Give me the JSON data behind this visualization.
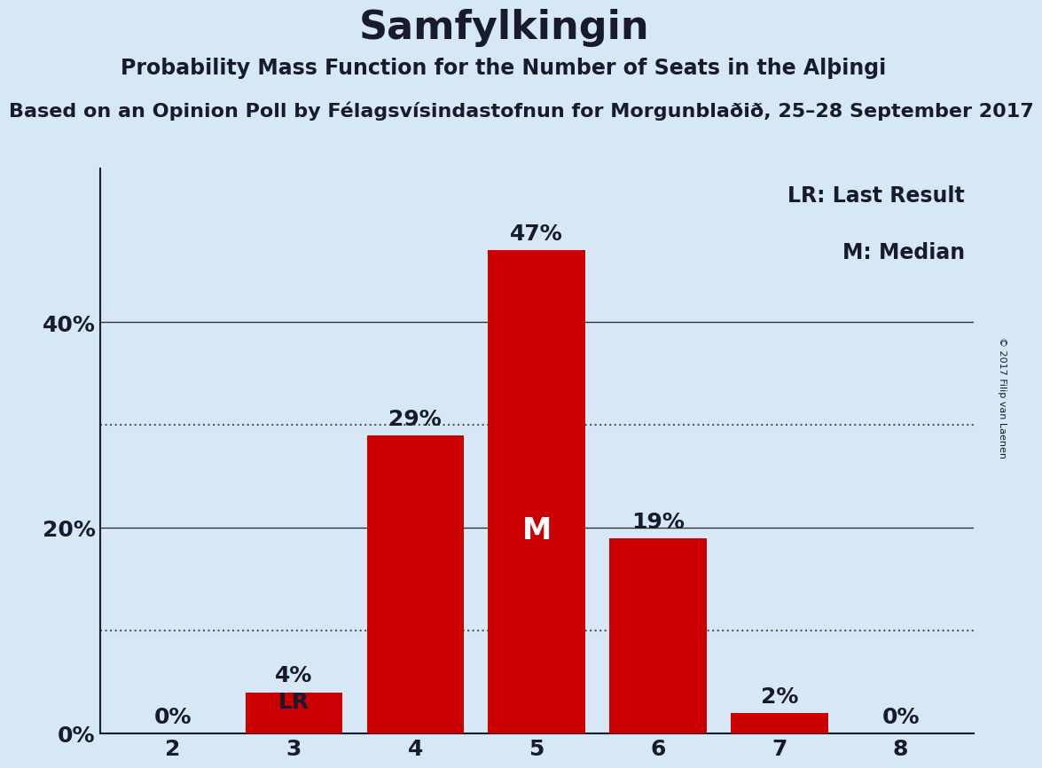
{
  "title": "Samfylkingin",
  "subtitle": "Probability Mass Function for the Number of Seats in the Alþingi",
  "source_line": "Based on an Opinion Poll by Félagsvísindastofnun for Morgunblaðið, 25–28 September 2017",
  "copyright": "© 2017 Filip van Laenen",
  "seats": [
    2,
    3,
    4,
    5,
    6,
    7,
    8
  ],
  "probabilities": [
    0,
    4,
    29,
    47,
    19,
    2,
    0
  ],
  "bar_color": "#cc0000",
  "background_color": "#d6e8f5",
  "median_seat": 5,
  "last_result_seat": 3,
  "legend_lr": "LR: Last Result",
  "legend_m": "M: Median",
  "ylabel_ticks": [
    0,
    20,
    40
  ],
  "dotted_lines": [
    10,
    30
  ],
  "ylim": [
    0,
    55
  ],
  "bar_label_fontsize": 18,
  "axis_tick_fontsize": 18,
  "title_fontsize": 32,
  "subtitle_fontsize": 17,
  "source_fontsize": 16
}
